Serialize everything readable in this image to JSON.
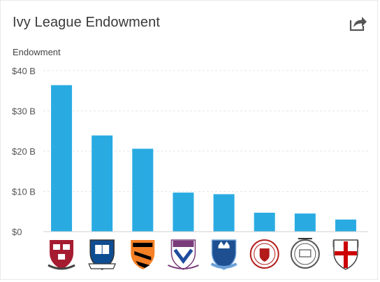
{
  "header": {
    "title": "Ivy League Endowment",
    "share_icon": "share-arrow-icon"
  },
  "chart_data": {
    "type": "bar",
    "title": "Ivy League Endowment",
    "xlabel": "",
    "ylabel": "Endowment",
    "unit": "$B",
    "ylim": [
      0,
      40
    ],
    "yticks": [
      "$0",
      "$10 B",
      "$20 B",
      "$30 B",
      "$40 B"
    ],
    "ytick_values": [
      0,
      10,
      20,
      30,
      40
    ],
    "grid": true,
    "bar_color": "#29abe2",
    "categories_shown_as": "university-logos",
    "categories": [
      "harvard-logo",
      "yale-logo",
      "princeton-logo",
      "penn-logo",
      "columbia-logo",
      "cornell-logo",
      "dartmouth-logo",
      "brown-logo"
    ],
    "values": [
      36.4,
      23.9,
      20.6,
      9.7,
      9.3,
      4.7,
      4.5,
      3.0
    ]
  }
}
